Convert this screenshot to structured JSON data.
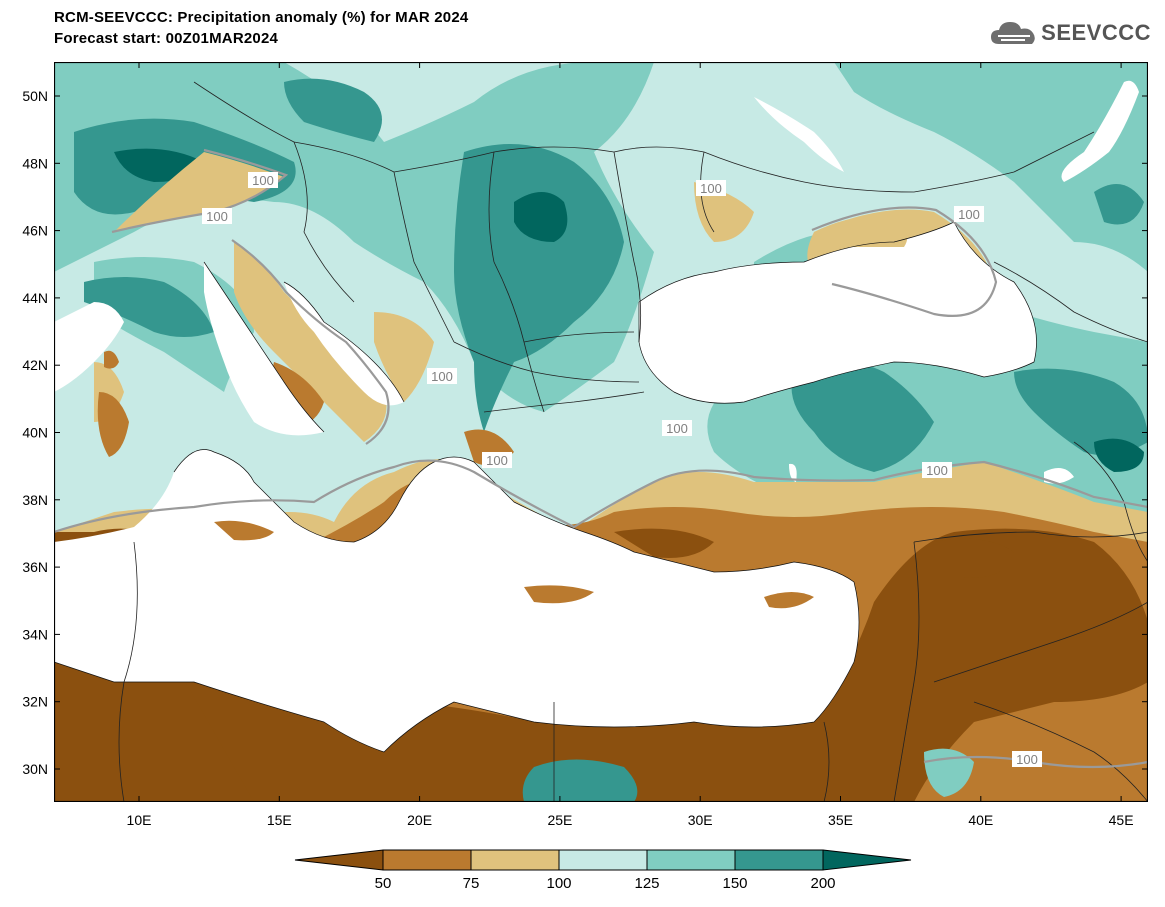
{
  "title": "RCM-SEEVCCC: Precipitation anomaly (%) for MAR 2024",
  "subtitle": "Forecast start: 00Z01MAR2024",
  "logo": {
    "text": "SEEVCCC",
    "icon": "cloud-icon"
  },
  "axes": {
    "lat_labels": [
      "50N",
      "48N",
      "46N",
      "44N",
      "42N",
      "40N",
      "38N",
      "36N",
      "34N",
      "32N",
      "30N"
    ],
    "lon_labels": [
      "10E",
      "15E",
      "20E",
      "25E",
      "30E",
      "35E",
      "40E",
      "45E"
    ]
  },
  "contour_labels": [
    "100",
    "100",
    "100",
    "100",
    "100",
    "100",
    "100",
    "100",
    "100"
  ],
  "colorbar": {
    "ticks": [
      "50",
      "75",
      "100",
      "125",
      "150",
      "200"
    ],
    "colors": [
      "#8B500F",
      "#BA7A2F",
      "#DFC27D",
      "#C7EAE5",
      "#80CDC1",
      "#35978F",
      "#01665E"
    ]
  },
  "palette": {
    "dry_strong": "#8B500F",
    "dry": "#BA7A2F",
    "dry_light": "#DFC27D",
    "wet_light": "#C7EAE5",
    "wet": "#80CDC1",
    "wet_strong": "#35978F",
    "wet_extreme": "#01665E",
    "contour": "#9A9A9A"
  }
}
